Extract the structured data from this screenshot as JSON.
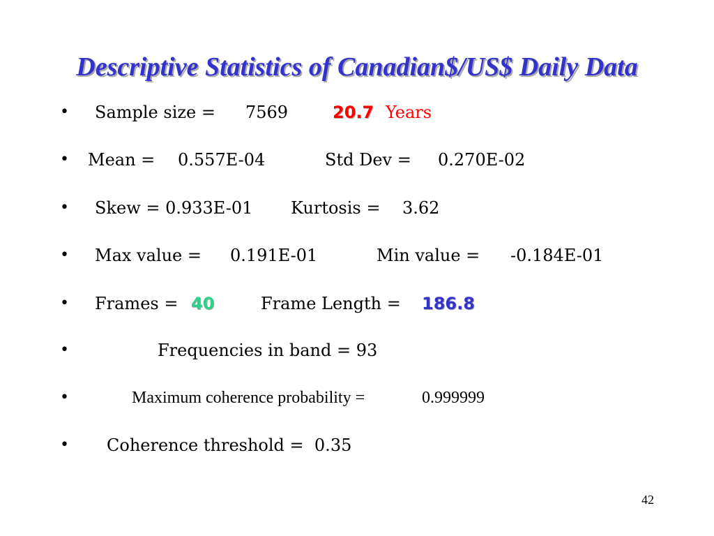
{
  "slide": {
    "title": "Descriptive Statistics of Canadian$/US$ Daily Data",
    "bullet_char": "•",
    "bullets": {
      "sample": {
        "label": "Sample size =",
        "value": "7569",
        "years_num": "20.7",
        "years_word": "Years"
      },
      "mean": {
        "mean_label": "Mean =",
        "mean_value": "0.557E-04",
        "std_label": "Std Dev =",
        "std_value": "0.270E-02"
      },
      "skew": {
        "skew_label": "Skew = 0.933E-01",
        "kurt_label": "Kurtosis =",
        "kurt_value": "3.62"
      },
      "max": {
        "max_label": "Max value =",
        "max_value": "0.191E-01",
        "min_label": "Min value =",
        "min_value": "-0.184E-01"
      },
      "frames": {
        "frames_label": "Frames =",
        "frames_value": "40",
        "length_label": "Frame Length =",
        "length_value": "186.8"
      },
      "freq": {
        "text": "Frequencies in band = 93"
      },
      "coherence_prob": {
        "label": "Maximum coherence probability =",
        "value": "0.999999"
      },
      "threshold": {
        "text": "Coherence threshold =  0.35"
      }
    },
    "page_number": "42",
    "colors": {
      "title": "#3333cc",
      "years": "#ff0000",
      "frames": "#2bd28a",
      "frame_length": "#3333cc"
    }
  }
}
